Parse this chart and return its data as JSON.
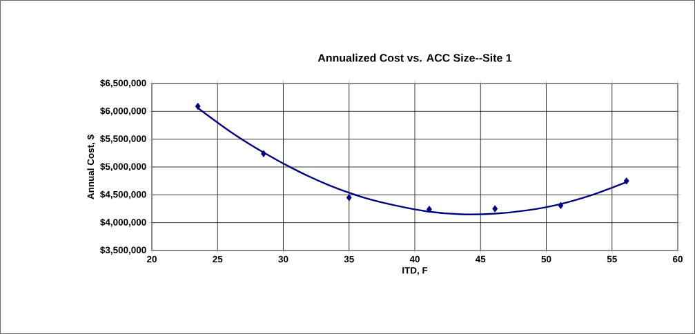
{
  "chart_data": {
    "type": "scatter",
    "title": "Annualized Cost vs. ACC Size--Site 1",
    "xlabel": "ITD, F",
    "ylabel": "Annual Cost, $",
    "series": [
      {
        "color": "#000080",
        "marker": "diamond",
        "x": [
          23.5,
          28.5,
          35,
          41.1,
          46.1,
          51.1,
          56.1
        ],
        "values": [
          6090000,
          5240000,
          4450000,
          4240000,
          4250000,
          4310000,
          4750000
        ]
      },
      {
        "type": "line",
        "color": "#000080",
        "marker": "none",
        "x": [
          23.5,
          26,
          28.5,
          31,
          33.5,
          36,
          38.5,
          41,
          43.5,
          46,
          48.5,
          51,
          53.5,
          56.1
        ],
        "values": [
          6060000,
          5630000,
          5260000,
          4940000,
          4670000,
          4460000,
          4310000,
          4200000,
          4150000,
          4160000,
          4220000,
          4330000,
          4500000,
          4730000
        ]
      }
    ],
    "xlim": [
      20,
      60
    ],
    "xticks": [
      20,
      25,
      30,
      35,
      40,
      45,
      50,
      55,
      60
    ],
    "ylim": [
      3500000,
      6500000
    ],
    "yticks": [
      {
        "value": 3500000,
        "label": "$3,500,000"
      },
      {
        "value": 4000000,
        "label": "$4,000,000"
      },
      {
        "value": 4500000,
        "label": "$4,500,000"
      },
      {
        "value": 5000000,
        "label": "$5,000,000"
      },
      {
        "value": 5500000,
        "label": "$5,500,000"
      },
      {
        "value": 6000000,
        "label": "$6,000,000"
      },
      {
        "value": 6500000,
        "label": "$6,500,000"
      }
    ],
    "grid": true
  }
}
